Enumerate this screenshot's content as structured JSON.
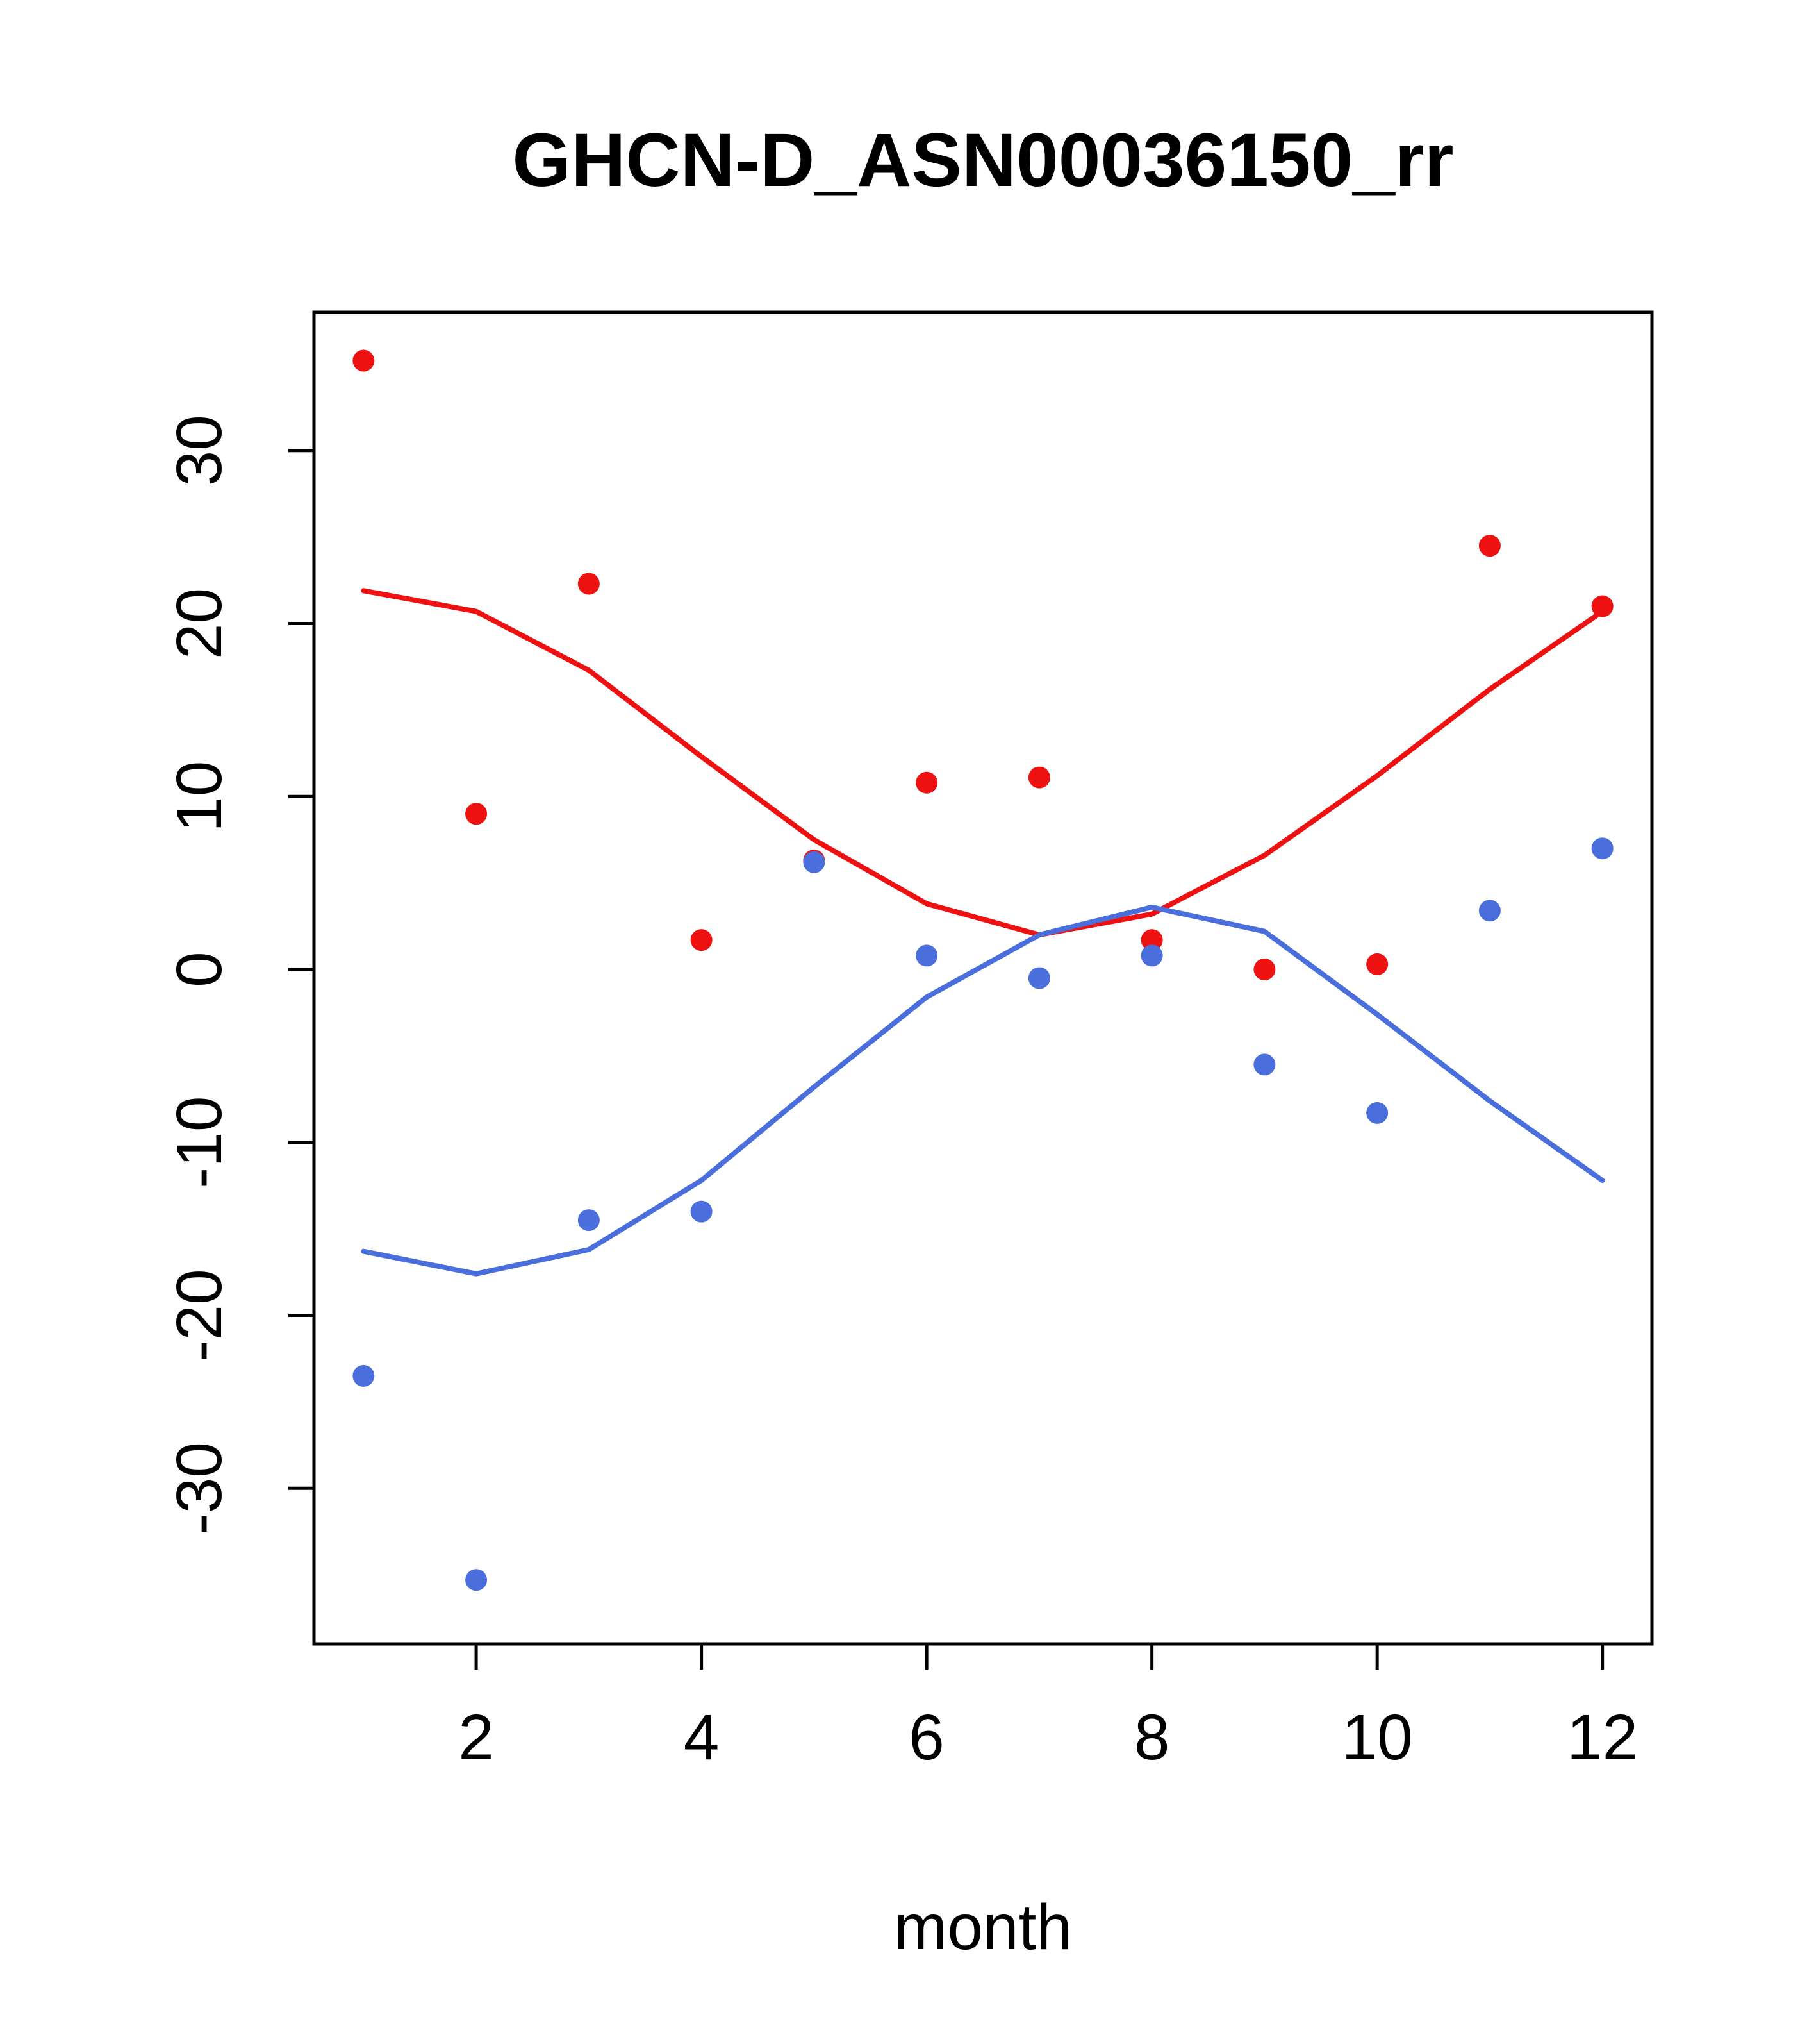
{
  "chart_data": {
    "type": "scatter",
    "title": "GHCN-D_ASN00036150_rr",
    "xlabel": "month",
    "ylabel": "",
    "x": [
      1,
      2,
      3,
      4,
      5,
      6,
      7,
      8,
      9,
      10,
      11,
      12
    ],
    "series": [
      {
        "name": "red-points",
        "style": "points",
        "color": "#ee1111",
        "values": [
          35.2,
          9.0,
          22.3,
          1.7,
          6.3,
          10.8,
          11.1,
          1.7,
          0.0,
          0.3,
          24.5,
          21.0
        ]
      },
      {
        "name": "blue-points",
        "style": "points",
        "color": "#4a6fdc",
        "values": [
          -23.5,
          -35.3,
          -14.5,
          -14.0,
          6.2,
          0.8,
          -0.5,
          0.8,
          -5.5,
          -8.3,
          3.4,
          7.0
        ]
      },
      {
        "name": "red-smooth",
        "style": "line",
        "color": "#ee1111",
        "values": [
          21.9,
          20.7,
          17.3,
          12.3,
          7.5,
          3.8,
          2.0,
          3.2,
          6.6,
          11.2,
          16.2,
          20.7
        ]
      },
      {
        "name": "blue-smooth",
        "style": "line",
        "color": "#4a6fdc",
        "values": [
          -16.3,
          -17.6,
          -16.2,
          -12.2,
          -6.8,
          -1.6,
          2.0,
          3.6,
          2.2,
          -2.6,
          -7.6,
          -12.2
        ]
      }
    ],
    "xticks": [
      2,
      4,
      6,
      8,
      10,
      12
    ],
    "yticks": [
      -30,
      -20,
      -10,
      0,
      10,
      20,
      30
    ],
    "xlim": [
      0.56,
      12.44
    ],
    "ylim": [
      -39,
      38
    ],
    "grid": false,
    "legend": null,
    "background": "#ffffff",
    "frame_color": "#000000"
  }
}
